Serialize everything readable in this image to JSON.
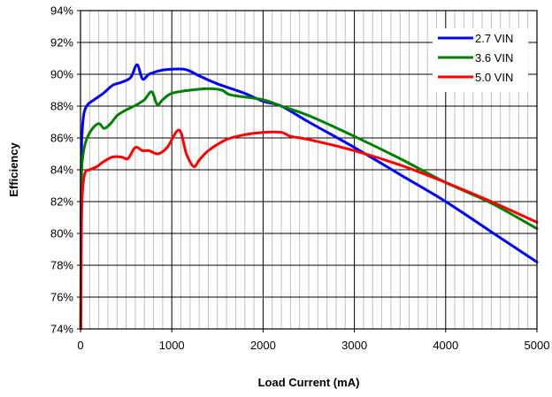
{
  "chart_data": {
    "type": "line",
    "xlabel": "Load Current (mA)",
    "ylabel": "Efficiency",
    "xlim": [
      0,
      5000
    ],
    "ylim": [
      74,
      94
    ],
    "x_ticks": [
      0,
      1000,
      2000,
      3000,
      4000,
      5000
    ],
    "x_tick_labels": [
      "0",
      "1000",
      "2000",
      "3000",
      "4000",
      "5000"
    ],
    "y_ticks": [
      74,
      76,
      78,
      80,
      82,
      84,
      86,
      88,
      90,
      92,
      94
    ],
    "y_tick_labels": [
      "74%",
      "76%",
      "78%",
      "80%",
      "82%",
      "84%",
      "86%",
      "88%",
      "90%",
      "92%",
      "94%"
    ],
    "x_minor_step": 100,
    "grid": true,
    "legend_position": "top-right",
    "series": [
      {
        "name": "2.7 VIN",
        "color": "#0000ff",
        "points": [
          [
            3,
            74
          ],
          [
            8,
            84
          ],
          [
            20,
            86.5
          ],
          [
            40,
            87.6
          ],
          [
            80,
            88.1
          ],
          [
            150,
            88.4
          ],
          [
            250,
            88.8
          ],
          [
            350,
            89.3
          ],
          [
            450,
            89.5
          ],
          [
            550,
            89.8
          ],
          [
            620,
            90.6
          ],
          [
            680,
            89.7
          ],
          [
            750,
            90.0
          ],
          [
            850,
            90.2
          ],
          [
            950,
            90.3
          ],
          [
            1150,
            90.3
          ],
          [
            1300,
            89.9
          ],
          [
            1500,
            89.4
          ],
          [
            1800,
            88.8
          ],
          [
            2000,
            88.3
          ],
          [
            2200,
            88.0
          ],
          [
            2500,
            87.0
          ],
          [
            3000,
            85.4
          ],
          [
            3500,
            83.7
          ],
          [
            4000,
            82.0
          ],
          [
            4500,
            80.1
          ],
          [
            5000,
            78.2
          ]
        ]
      },
      {
        "name": "3.6 VIN",
        "color": "#008000",
        "points": [
          [
            3,
            74
          ],
          [
            10,
            83
          ],
          [
            25,
            84.8
          ],
          [
            60,
            85.8
          ],
          [
            120,
            86.5
          ],
          [
            200,
            86.9
          ],
          [
            260,
            86.6
          ],
          [
            330,
            86.9
          ],
          [
            400,
            87.4
          ],
          [
            480,
            87.7
          ],
          [
            550,
            87.9
          ],
          [
            620,
            88.1
          ],
          [
            700,
            88.4
          ],
          [
            780,
            88.9
          ],
          [
            840,
            88.1
          ],
          [
            900,
            88.4
          ],
          [
            1000,
            88.8
          ],
          [
            1200,
            89.0
          ],
          [
            1400,
            89.1
          ],
          [
            1550,
            89.0
          ],
          [
            1650,
            88.7
          ],
          [
            2000,
            88.4
          ],
          [
            2200,
            88.0
          ],
          [
            2500,
            87.4
          ],
          [
            3000,
            86.1
          ],
          [
            3500,
            84.7
          ],
          [
            4000,
            83.2
          ],
          [
            4500,
            81.9
          ],
          [
            5000,
            80.3
          ]
        ]
      },
      {
        "name": "5.0 VIN",
        "color": "#ff0000",
        "points": [
          [
            3,
            74
          ],
          [
            10,
            80
          ],
          [
            20,
            82.5
          ],
          [
            50,
            83.8
          ],
          [
            100,
            84.0
          ],
          [
            180,
            84.2
          ],
          [
            250,
            84.5
          ],
          [
            350,
            84.8
          ],
          [
            450,
            84.8
          ],
          [
            520,
            84.7
          ],
          [
            600,
            85.4
          ],
          [
            680,
            85.2
          ],
          [
            750,
            85.2
          ],
          [
            850,
            85.0
          ],
          [
            950,
            85.4
          ],
          [
            1080,
            86.5
          ],
          [
            1160,
            85.0
          ],
          [
            1240,
            84.2
          ],
          [
            1300,
            84.6
          ],
          [
            1400,
            85.2
          ],
          [
            1600,
            85.9
          ],
          [
            1800,
            86.2
          ],
          [
            2000,
            86.35
          ],
          [
            2200,
            86.35
          ],
          [
            2300,
            86.1
          ],
          [
            2500,
            85.9
          ],
          [
            3000,
            85.2
          ],
          [
            3500,
            84.3
          ],
          [
            4000,
            83.2
          ],
          [
            4500,
            82.0
          ],
          [
            5000,
            80.7
          ]
        ]
      }
    ]
  }
}
